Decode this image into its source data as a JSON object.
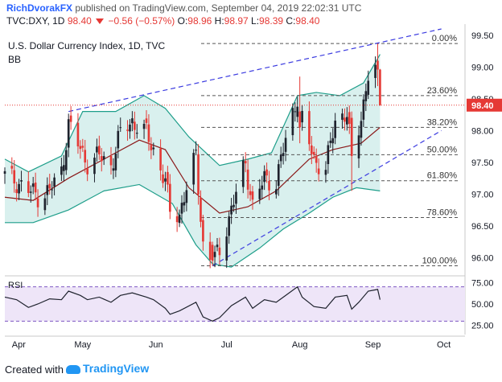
{
  "header": {
    "author": "RichDvorakFX",
    "published_text": "published on TradingView.com, September 04, 2019 22:02:31 UTC",
    "symbol": "TVC:DXY, 1D",
    "last": "98.40",
    "change": "−0.56 (−0.57%)",
    "o_label": "O:",
    "o": "98.96",
    "h_label": "H:",
    "h": "98.97",
    "l_label": "L:",
    "l": "98.39",
    "c_label": "C:",
    "c": "98.40"
  },
  "legend": {
    "title": "U.S. Dollar Currency Index, 1D, TVC",
    "indicator": "BB"
  },
  "footer": {
    "created_with": "Created with",
    "brand": "TradingView"
  },
  "colors": {
    "up": "#1e222d",
    "down": "#e53935",
    "band_fill": "#d9f0ee",
    "band_line": "#1e9e8a",
    "basis": "#8b1a1a",
    "trend": "#3b3be0",
    "fib": "#555555",
    "price_line": "#e53935",
    "rsi_line": "#1e222d",
    "rsi_fill": "#eee5f8",
    "rsi_band": "#7e57c2"
  },
  "chart_data": [
    {
      "type": "candlestick",
      "title": "",
      "x_labels": [
        "Apr",
        "May",
        "Jun",
        "Jul",
        "Aug",
        "Sep",
        "Oct"
      ],
      "y_ticks": [
        "99.50",
        "99.00",
        "98.50",
        "98.00",
        "97.50",
        "97.00",
        "96.50",
        "96.00"
      ],
      "ylim": [
        95.75,
        99.6
      ],
      "current_price": "98.40",
      "fib_levels": [
        {
          "label": "0.00%",
          "value": 99.37
        },
        {
          "label": "23.60%",
          "value": 98.55
        },
        {
          "label": "38.20%",
          "value": 98.05
        },
        {
          "label": "50.00%",
          "value": 97.62
        },
        {
          "label": "61.80%",
          "value": 97.21
        },
        {
          "label": "78.60%",
          "value": 96.63
        },
        {
          "label": "100.00%",
          "value": 95.87
        }
      ],
      "close_path": [
        {
          "date": "2019-03-29",
          "close": 97.28
        },
        {
          "date": "2019-04-03",
          "close": 97.2
        },
        {
          "date": "2019-04-08",
          "close": 97.05
        },
        {
          "date": "2019-04-12",
          "close": 96.98
        },
        {
          "date": "2019-04-17",
          "close": 97.05
        },
        {
          "date": "2019-04-22",
          "close": 97.35
        },
        {
          "date": "2019-04-25",
          "close": 98.1
        },
        {
          "date": "2019-04-30",
          "close": 97.7
        },
        {
          "date": "2019-05-03",
          "close": 97.5
        },
        {
          "date": "2019-05-08",
          "close": 97.6
        },
        {
          "date": "2019-05-13",
          "close": 97.45
        },
        {
          "date": "2019-05-17",
          "close": 97.95
        },
        {
          "date": "2019-05-22",
          "close": 98.15
        },
        {
          "date": "2019-05-28",
          "close": 97.95
        },
        {
          "date": "2019-05-31",
          "close": 97.7
        },
        {
          "date": "2019-06-05",
          "close": 97.2
        },
        {
          "date": "2019-06-07",
          "close": 96.7
        },
        {
          "date": "2019-06-11",
          "close": 96.7
        },
        {
          "date": "2019-06-18",
          "close": 97.6
        },
        {
          "date": "2019-06-21",
          "close": 96.2
        },
        {
          "date": "2019-06-25",
          "close": 95.9
        },
        {
          "date": "2019-06-28",
          "close": 96.13
        },
        {
          "date": "2019-07-03",
          "close": 96.75
        },
        {
          "date": "2019-07-09",
          "close": 97.5
        },
        {
          "date": "2019-07-12",
          "close": 96.8
        },
        {
          "date": "2019-07-17",
          "close": 97.25
        },
        {
          "date": "2019-07-22",
          "close": 97.2
        },
        {
          "date": "2019-07-26",
          "close": 97.85
        },
        {
          "date": "2019-07-31",
          "close": 98.55
        },
        {
          "date": "2019-08-02",
          "close": 98.15
        },
        {
          "date": "2019-08-07",
          "close": 97.55
        },
        {
          "date": "2019-08-12",
          "close": 97.4
        },
        {
          "date": "2019-08-16",
          "close": 98.15
        },
        {
          "date": "2019-08-21",
          "close": 98.3
        },
        {
          "date": "2019-08-23",
          "close": 97.6
        },
        {
          "date": "2019-08-26",
          "close": 98.0
        },
        {
          "date": "2019-08-30",
          "close": 98.9
        },
        {
          "date": "2019-09-03",
          "close": 98.96
        },
        {
          "date": "2019-09-04",
          "close": 98.4
        }
      ],
      "key_candles": [
        {
          "date": "2019-06-25",
          "open": 96.2,
          "high": 96.25,
          "low": 95.87,
          "close": 95.95
        },
        {
          "date": "2019-08-01",
          "open": 98.3,
          "high": 98.85,
          "low": 97.8,
          "close": 98.05
        },
        {
          "date": "2019-08-23",
          "open": 98.2,
          "high": 98.3,
          "low": 97.05,
          "close": 97.6
        },
        {
          "date": "2019-09-03",
          "open": 99.1,
          "high": 99.37,
          "low": 98.7,
          "close": 98.96
        },
        {
          "date": "2019-09-04",
          "open": 98.96,
          "high": 98.97,
          "low": 98.39,
          "close": 98.4
        }
      ],
      "bollinger_upper": [
        {
          "date": "2019-03-29",
          "value": 97.55
        },
        {
          "date": "2019-04-08",
          "value": 97.35
        },
        {
          "date": "2019-04-22",
          "value": 97.6
        },
        {
          "date": "2019-05-01",
          "value": 98.3
        },
        {
          "date": "2019-05-15",
          "value": 98.3
        },
        {
          "date": "2019-05-27",
          "value": 98.55
        },
        {
          "date": "2019-06-05",
          "value": 98.35
        },
        {
          "date": "2019-06-15",
          "value": 97.9
        },
        {
          "date": "2019-06-28",
          "value": 97.45
        },
        {
          "date": "2019-07-10",
          "value": 97.55
        },
        {
          "date": "2019-07-20",
          "value": 97.65
        },
        {
          "date": "2019-07-31",
          "value": 98.55
        },
        {
          "date": "2019-08-08",
          "value": 98.6
        },
        {
          "date": "2019-08-18",
          "value": 98.55
        },
        {
          "date": "2019-08-28",
          "value": 98.75
        },
        {
          "date": "2019-09-04",
          "value": 99.2
        }
      ],
      "bollinger_basis": [
        {
          "date": "2019-03-29",
          "value": 96.95
        },
        {
          "date": "2019-04-10",
          "value": 96.9
        },
        {
          "date": "2019-04-25",
          "value": 97.25
        },
        {
          "date": "2019-05-10",
          "value": 97.55
        },
        {
          "date": "2019-05-25",
          "value": 97.85
        },
        {
          "date": "2019-06-05",
          "value": 97.7
        },
        {
          "date": "2019-06-15",
          "value": 97.1
        },
        {
          "date": "2019-06-28",
          "value": 96.7
        },
        {
          "date": "2019-07-10",
          "value": 96.8
        },
        {
          "date": "2019-07-22",
          "value": 97.05
        },
        {
          "date": "2019-08-05",
          "value": 97.55
        },
        {
          "date": "2019-08-15",
          "value": 97.7
        },
        {
          "date": "2019-08-27",
          "value": 97.8
        },
        {
          "date": "2019-09-04",
          "value": 98.05
        }
      ],
      "bollinger_lower": [
        {
          "date": "2019-03-29",
          "value": 96.55
        },
        {
          "date": "2019-04-10",
          "value": 96.55
        },
        {
          "date": "2019-04-25",
          "value": 96.75
        },
        {
          "date": "2019-05-10",
          "value": 97.05
        },
        {
          "date": "2019-05-25",
          "value": 97.15
        },
        {
          "date": "2019-06-08",
          "value": 96.85
        },
        {
          "date": "2019-06-18",
          "value": 96.2
        },
        {
          "date": "2019-06-25",
          "value": 95.9
        },
        {
          "date": "2019-07-03",
          "value": 95.85
        },
        {
          "date": "2019-07-15",
          "value": 96.15
        },
        {
          "date": "2019-07-25",
          "value": 96.45
        },
        {
          "date": "2019-08-05",
          "value": 96.7
        },
        {
          "date": "2019-08-15",
          "value": 96.95
        },
        {
          "date": "2019-08-25",
          "value": 97.1
        },
        {
          "date": "2019-09-04",
          "value": 97.05
        }
      ],
      "trendlines": [
        {
          "from": {
            "date": "2019-04-25",
            "value": 98.3
          },
          "to": {
            "date": "2019-09-30",
            "value": 99.6
          }
        },
        {
          "from": {
            "date": "2019-06-25",
            "value": 95.87
          },
          "to": {
            "date": "2019-09-30",
            "value": 98.0
          }
        }
      ]
    },
    {
      "type": "line",
      "title": "",
      "legend": "RSI",
      "y_ticks": [
        "75.00",
        "50.00",
        "25.00"
      ],
      "ylim": [
        20,
        80
      ],
      "band": [
        30,
        70
      ],
      "series": [
        {
          "values": [
            {
              "date": "2019-03-29",
              "value": 58
            },
            {
              "date": "2019-04-03",
              "value": 55
            },
            {
              "date": "2019-04-08",
              "value": 46
            },
            {
              "date": "2019-04-12",
              "value": 50
            },
            {
              "date": "2019-04-17",
              "value": 56
            },
            {
              "date": "2019-04-22",
              "value": 55
            },
            {
              "date": "2019-04-25",
              "value": 65
            },
            {
              "date": "2019-04-30",
              "value": 60
            },
            {
              "date": "2019-05-03",
              "value": 55
            },
            {
              "date": "2019-05-08",
              "value": 58
            },
            {
              "date": "2019-05-13",
              "value": 52
            },
            {
              "date": "2019-05-17",
              "value": 60
            },
            {
              "date": "2019-05-22",
              "value": 63
            },
            {
              "date": "2019-05-28",
              "value": 58
            },
            {
              "date": "2019-05-31",
              "value": 55
            },
            {
              "date": "2019-06-05",
              "value": 45
            },
            {
              "date": "2019-06-07",
              "value": 38
            },
            {
              "date": "2019-06-11",
              "value": 42
            },
            {
              "date": "2019-06-18",
              "value": 52
            },
            {
              "date": "2019-06-21",
              "value": 35
            },
            {
              "date": "2019-06-25",
              "value": 30
            },
            {
              "date": "2019-06-28",
              "value": 34
            },
            {
              "date": "2019-07-03",
              "value": 48
            },
            {
              "date": "2019-07-09",
              "value": 58
            },
            {
              "date": "2019-07-12",
              "value": 45
            },
            {
              "date": "2019-07-17",
              "value": 55
            },
            {
              "date": "2019-07-22",
              "value": 52
            },
            {
              "date": "2019-07-26",
              "value": 60
            },
            {
              "date": "2019-07-31",
              "value": 70
            },
            {
              "date": "2019-08-02",
              "value": 58
            },
            {
              "date": "2019-08-07",
              "value": 47
            },
            {
              "date": "2019-08-12",
              "value": 45
            },
            {
              "date": "2019-08-16",
              "value": 58
            },
            {
              "date": "2019-08-21",
              "value": 60
            },
            {
              "date": "2019-08-23",
              "value": 44
            },
            {
              "date": "2019-08-26",
              "value": 52
            },
            {
              "date": "2019-08-30",
              "value": 65
            },
            {
              "date": "2019-09-03",
              "value": 67
            },
            {
              "date": "2019-09-04",
              "value": 55
            }
          ]
        }
      ]
    }
  ]
}
